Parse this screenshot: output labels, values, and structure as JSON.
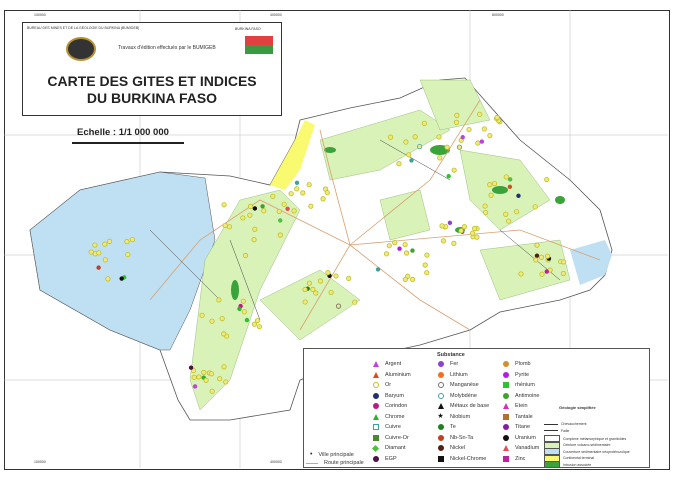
{
  "header": {
    "organization": "BUREAU DES MINES ET DE LA GÉOLOGIE DU BURKINA (BUMIGEB)",
    "credit": "Travaux d'édition effectués par le BUMIGEB",
    "country_label": "BURKINA FASO",
    "title_line1": "CARTE DES GITES ET INDICES",
    "title_line2": "DU BURKINA FASO",
    "scale": "Echelle : 1/1 000 000"
  },
  "grid_labels": {
    "top": [
      "100000",
      "400000",
      "800000"
    ],
    "bottom": [
      "100000",
      "400000",
      "800000"
    ]
  },
  "colors": {
    "socle": "#ffffff",
    "volcano_sedimentaire": "#d8f2b8",
    "couverture": "#bfe0f2",
    "continental": "#fafa70",
    "intrusion": "#3aa33a",
    "route": "#d9a070"
  },
  "legend": {
    "title": "Substance",
    "substances": [
      {
        "label": "Argent",
        "shape": "triangle",
        "color": "#c040e0"
      },
      {
        "label": "Aluminium",
        "shape": "triangle",
        "color": "#d05020"
      },
      {
        "label": "Or",
        "shape": "ring",
        "color": "#c0c020"
      },
      {
        "label": "Baryum",
        "shape": "circle",
        "color": "#203070"
      },
      {
        "label": "Corindon",
        "shape": "circle",
        "color": "#c01880"
      },
      {
        "label": "Chrome",
        "shape": "triangle",
        "color": "#30b030"
      },
      {
        "label": "Cuivre",
        "shape": "square-outline",
        "color": "#40a0a0"
      },
      {
        "label": "Cuivre-Or",
        "shape": "square",
        "color": "#4a8a30"
      },
      {
        "label": "Diamant",
        "shape": "diamond",
        "color": "#50c040"
      },
      {
        "label": "EGP",
        "shape": "circle",
        "color": "#501040"
      },
      {
        "label": "Fer",
        "shape": "circle",
        "color": "#9040d0"
      },
      {
        "label": "Lithium",
        "shape": "circle",
        "color": "#f07020"
      },
      {
        "label": "Manganèse",
        "shape": "ring",
        "color": "#707070"
      },
      {
        "label": "Molybdène",
        "shape": "ring",
        "color": "#40a0a0"
      },
      {
        "label": "Métaux de base",
        "shape": "triangle",
        "color": "#111111"
      },
      {
        "label": "Niobium",
        "shape": "star",
        "color": "#111111"
      },
      {
        "label": "Te",
        "shape": "circle",
        "color": "#208020"
      },
      {
        "label": "Nb-Sn-Ta",
        "shape": "circle",
        "color": "#c04020"
      },
      {
        "label": "Nickel",
        "shape": "circle",
        "color": "#502010"
      },
      {
        "label": "Nickel-Chrome",
        "shape": "square",
        "color": "#111111"
      },
      {
        "label": "Plomb",
        "shape": "circle",
        "color": "#d09030"
      },
      {
        "label": "Pyrite",
        "shape": "circle",
        "color": "#b020e0"
      },
      {
        "label": "rhénium",
        "shape": "square",
        "color": "#30c030"
      },
      {
        "label": "Antimoine",
        "shape": "circle",
        "color": "#40a030"
      },
      {
        "label": "Etein",
        "shape": "triangle",
        "color": "#d030c0"
      },
      {
        "label": "Tantale",
        "shape": "square",
        "color": "#b07030"
      },
      {
        "label": "Titane",
        "shape": "circle",
        "color": "#8020a0"
      },
      {
        "label": "Uranium",
        "shape": "circle",
        "color": "#111111"
      },
      {
        "label": "Vanadium",
        "shape": "triangle",
        "color": "#e05050"
      },
      {
        "label": "Zinc",
        "shape": "square",
        "color": "#c020a0"
      }
    ],
    "infra": [
      {
        "label": "Ville principale"
      },
      {
        "label": "Route principale"
      }
    ],
    "geology_title": "Géologie simplifiée",
    "geology": [
      {
        "label": "Chevauchement",
        "type": "line"
      },
      {
        "label": "Faille",
        "type": "line"
      },
      {
        "label": "Complexe métamorphique et granitoïdes",
        "color": "#ffffff"
      },
      {
        "label": "Ceinture volcano-sédimentaire",
        "color": "#d8f2b8"
      },
      {
        "label": "Couverture sédimentaire néoprotérozoïque",
        "color": "#bfe0f2"
      },
      {
        "label": "Continental terminal",
        "color": "#fafa70"
      },
      {
        "label": "Intrusion associée",
        "color": "#3aa33a"
      }
    ]
  }
}
